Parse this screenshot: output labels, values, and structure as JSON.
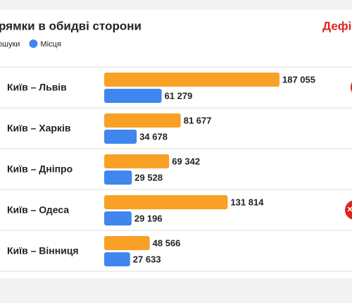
{
  "chart_data": {
    "type": "bar",
    "orientation": "horizontal",
    "title": "рямки в обидві сторони",
    "brand": "Дефі",
    "categories": [
      "Київ – Львів",
      "Київ – Харків",
      "Київ – Дніпро",
      "Київ – Одеса",
      "Київ – Вінниця"
    ],
    "series": [
      {
        "name": "ошуки",
        "color": "#f8a126",
        "values": [
          187055,
          81677,
          69342,
          131814,
          48566
        ],
        "value_labels": [
          "187 055",
          "81 677",
          "69 342",
          "131 814",
          "48 566"
        ]
      },
      {
        "name": "Місця",
        "color": "#3f87ee",
        "values": [
          61279,
          34678,
          29528,
          29196,
          27633
        ],
        "value_labels": [
          "61 279",
          "34 678",
          "29 528",
          "29 196",
          "27 633"
        ]
      }
    ]
  }
}
